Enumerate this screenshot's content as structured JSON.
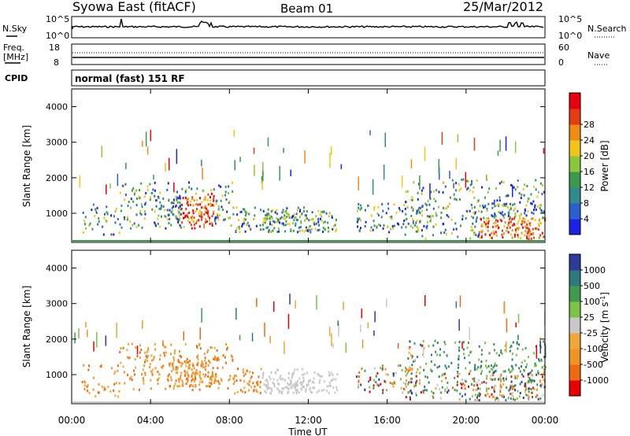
{
  "header": {
    "title": "Syowa East (fitACF)",
    "beam": "Beam 01",
    "date": "25/Mar/2012"
  },
  "panels": {
    "nsky": {
      "label": "N.Sky",
      "top_tick": "10^5",
      "bottom_tick": "10^0",
      "right_top_tick": "10^5",
      "right_bottom_tick": "10^0",
      "right_label": "N.Search"
    },
    "freq": {
      "label_line1": "Freq.",
      "label_line2": "[MHz]",
      "top_tick": "18",
      "bottom_tick": "8",
      "right_top_tick": "60",
      "right_bottom_tick": "0",
      "right_label": "Nave"
    },
    "cpid": {
      "label": "CPID",
      "value": "normal (fast) 151 RF"
    }
  },
  "chart_data": [
    {
      "type": "heatmap",
      "name": "power",
      "ylabel": "Slant Range [km]",
      "xlabel": "Time UT",
      "ylim": [
        180,
        4500
      ],
      "yticks": [
        "1000",
        "2000",
        "3000",
        "4000"
      ],
      "colorbar": {
        "label": "Power [dB]",
        "ticks": [
          "4",
          "8",
          "12",
          "16",
          "20",
          "24",
          "28"
        ],
        "colors": [
          "#1a22e6",
          "#2b5fd0",
          "#2f8a8a",
          "#3c9a4c",
          "#8cc63a",
          "#f0c419",
          "#f08c14",
          "#e63c14",
          "#e8000c"
        ]
      }
    },
    {
      "type": "heatmap",
      "name": "velocity",
      "ylabel": "Slant Range [km]",
      "xlabel": "Time UT",
      "ylim": [
        180,
        4500
      ],
      "yticks": [
        "1000",
        "2000",
        "3000",
        "4000"
      ],
      "colorbar": {
        "label": "Velocity [m s",
        "label_sup": "-1",
        "label_close": "]",
        "ticks": [
          "-1000",
          "-500",
          "-100",
          "-25",
          "25",
          "100",
          "500",
          "1000"
        ],
        "colors": [
          "#e80000",
          "#ee6a12",
          "#f09424",
          "#f0a63a",
          "#c8c8c8",
          "#7cc244",
          "#3f9a50",
          "#2e7a7a",
          "#2e3a9a"
        ]
      }
    }
  ],
  "xaxis": {
    "ticks": [
      "00:00",
      "04:00",
      "08:00",
      "12:00",
      "16:00",
      "20:00",
      "00:00"
    ],
    "label": "Time UT"
  }
}
